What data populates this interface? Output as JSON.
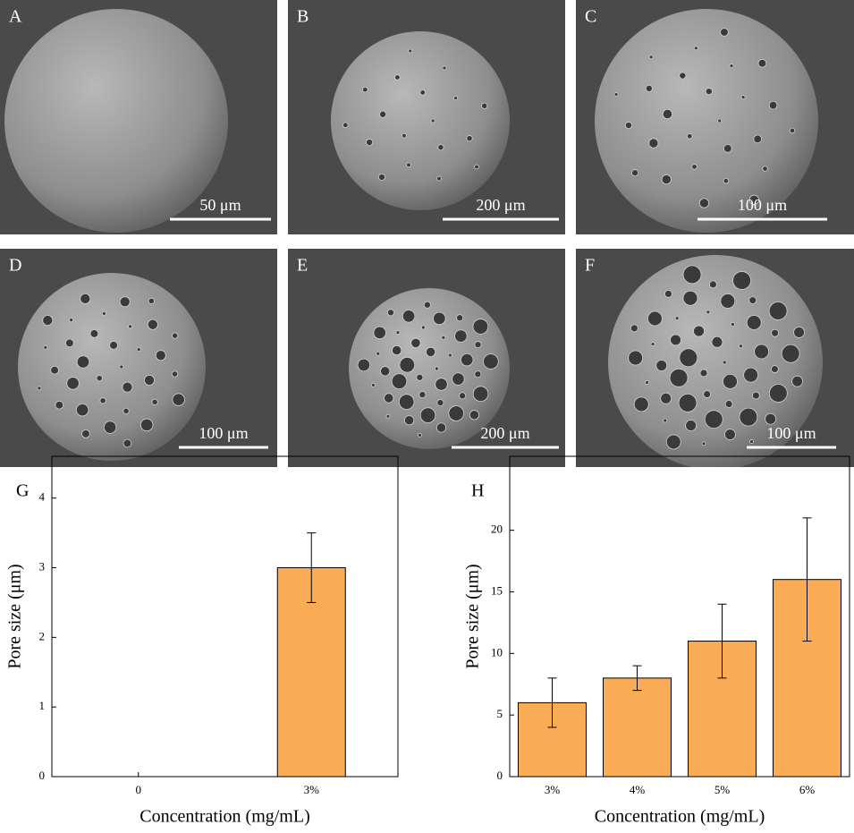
{
  "panels": [
    {
      "label": "A",
      "scale_bar": "50 μm"
    },
    {
      "label": "B",
      "scale_bar": "200 μm"
    },
    {
      "label": "C",
      "scale_bar": "100 μm"
    },
    {
      "label": "D",
      "scale_bar": "100 μm"
    },
    {
      "label": "E",
      "scale_bar": "200 μm"
    },
    {
      "label": "F",
      "scale_bar": "100 μm"
    }
  ],
  "chart_data": [
    {
      "type": "bar",
      "label": "G",
      "x_label": "Concentration (mg/mL)",
      "y_label": "Pore size (μm)",
      "categories": [
        "0",
        "3%"
      ],
      "values": [
        0,
        3
      ],
      "errors": [
        0,
        0.5
      ],
      "color": "#f9ab56",
      "ylim": [
        0,
        4.6
      ],
      "yticks": [
        0,
        1,
        2,
        3,
        4
      ]
    },
    {
      "type": "bar",
      "label": "H",
      "x_label": "Concentration (mg/mL)",
      "y_label": "Pore size (μm)",
      "categories": [
        "3%",
        "4%",
        "5%",
        "6%"
      ],
      "values": [
        6,
        8,
        11,
        16
      ],
      "errors": [
        2,
        1,
        3,
        5
      ],
      "color": "#f9ab56",
      "ylim": [
        0,
        26
      ],
      "yticks": [
        0,
        5,
        10,
        15,
        20
      ]
    }
  ]
}
